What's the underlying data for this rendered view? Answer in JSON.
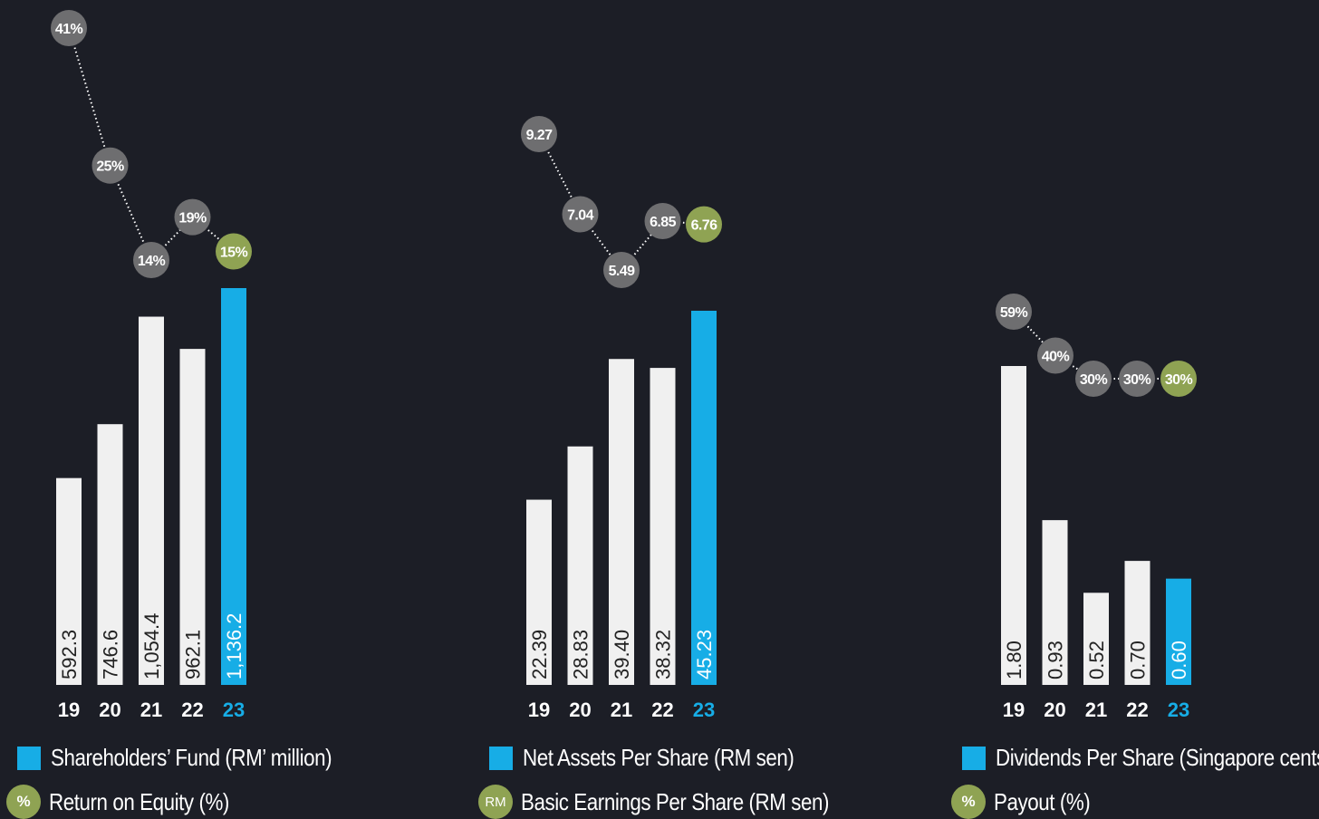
{
  "colors": {
    "background": "#1c1e26",
    "bar_default": "#f0f0f0",
    "bar_highlight": "#17ade6",
    "marker_default": "#6e6e70",
    "marker_highlight": "#8fa353",
    "year_default": "#ffffff",
    "year_highlight": "#17ade6"
  },
  "chart_data": [
    {
      "type": "bar",
      "categories": [
        "19",
        "20",
        "21",
        "22",
        "23"
      ],
      "values": [
        592.3,
        746.6,
        1054.4,
        962.1,
        1136.2
      ],
      "value_labels": [
        "592.3",
        "746.6",
        "1,054.4",
        "962.1",
        "1,136.2"
      ],
      "highlight_index": 4,
      "overlay": {
        "type": "line",
        "values": [
          41,
          25,
          14,
          19,
          15
        ],
        "labels": [
          "41%",
          "25%",
          "14%",
          "19%",
          "15%"
        ]
      },
      "legend": [
        {
          "marker": "square",
          "text": "Shareholders’ Fund (RM’ million)"
        },
        {
          "marker": "circle",
          "marker_text": "%",
          "text": "Return on Equity (%)"
        }
      ]
    },
    {
      "type": "bar",
      "categories": [
        "19",
        "20",
        "21",
        "22",
        "23"
      ],
      "values": [
        22.39,
        28.83,
        39.4,
        38.32,
        45.23
      ],
      "value_labels": [
        "22.39",
        "28.83",
        "39.40",
        "38.32",
        "45.23"
      ],
      "highlight_index": 4,
      "overlay": {
        "type": "line",
        "values": [
          9.27,
          7.04,
          5.49,
          6.85,
          6.76
        ],
        "labels": [
          "9.27",
          "7.04",
          "5.49",
          "6.85",
          "6.76"
        ]
      },
      "legend": [
        {
          "marker": "square",
          "text": "Net Assets Per Share (RM sen)"
        },
        {
          "marker": "circle",
          "marker_text": "RM",
          "text": "Basic Earnings Per Share (RM sen)"
        }
      ]
    },
    {
      "type": "bar",
      "categories": [
        "19",
        "20",
        "21",
        "22",
        "23"
      ],
      "values": [
        1.8,
        0.93,
        0.52,
        0.7,
        0.6
      ],
      "value_labels": [
        "1.80",
        "0.93",
        "0.52",
        "0.70",
        "0.60"
      ],
      "highlight_index": 4,
      "overlay": {
        "type": "line",
        "values": [
          59,
          40,
          30,
          30,
          30
        ],
        "labels": [
          "59%",
          "40%",
          "30%",
          "30%",
          "30%"
        ]
      },
      "legend": [
        {
          "marker": "square",
          "text": "Dividends Per Share (Singapore cents)"
        },
        {
          "marker": "circle",
          "marker_text": "%",
          "text": "Payout (%)"
        }
      ]
    }
  ]
}
